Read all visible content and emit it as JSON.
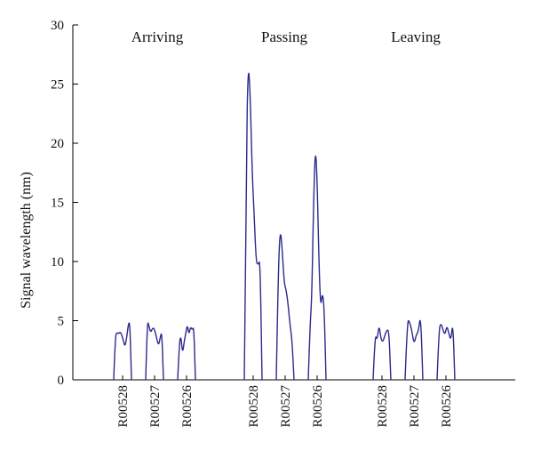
{
  "chart_data": {
    "type": "line",
    "title": "",
    "xlabel": "",
    "ylabel": "Signal wavelength (nm)",
    "ylim": [
      0,
      30
    ],
    "yticks": [
      0,
      5,
      10,
      15,
      20,
      25,
      30
    ],
    "grid": false,
    "line_color": "#2b2a8c",
    "groups": [
      {
        "label": "Arriving",
        "sensors": [
          {
            "label": "R00528",
            "values": [
              0,
              3.7,
              4.0,
              3.9,
              4.05,
              3.8,
              3.3,
              2.8,
              3.5,
              4.7,
              4.9,
              0
            ]
          },
          {
            "label": "R00527",
            "values": [
              0,
              5.0,
              4.6,
              4.0,
              4.3,
              4.4,
              4.0,
              3.4,
              2.9,
              3.6,
              4.1,
              0
            ]
          },
          {
            "label": "R00526",
            "values": [
              0,
              3.0,
              3.8,
              2.2,
              3.2,
              3.9,
              4.7,
              3.8,
              4.5,
              4.2,
              4.5,
              0
            ]
          }
        ]
      },
      {
        "label": "Passing",
        "sensors": [
          {
            "label": "R00528",
            "values": [
              0,
              19.0,
              27.0,
              24.0,
              17.5,
              14.0,
              10.0,
              9.7,
              10.2,
              0
            ]
          },
          {
            "label": "R00527",
            "values": [
              0,
              9.0,
              12.9,
              11.0,
              8.2,
              7.6,
              6.4,
              4.6,
              3.3,
              0
            ]
          },
          {
            "label": "R00526",
            "values": [
              0,
              4.5,
              7.0,
              15.0,
              19.8,
              17.0,
              10.0,
              6.0,
              7.5,
              6.0,
              0
            ]
          }
        ]
      },
      {
        "label": "Leaving",
        "sensors": [
          {
            "label": "R00528",
            "values": [
              0,
              3.9,
              3.3,
              4.7,
              3.4,
              3.2,
              3.8,
              4.2,
              4.2,
              0
            ]
          },
          {
            "label": "R00527",
            "values": [
              0,
              5.1,
              4.9,
              4.2,
              3.0,
              3.8,
              4.1,
              5.6,
              0
            ]
          },
          {
            "label": "R00526",
            "values": [
              0,
              4.3,
              4.8,
              4.2,
              3.8,
              4.6,
              3.9,
              3.3,
              5.0,
              0
            ]
          }
        ]
      }
    ]
  }
}
